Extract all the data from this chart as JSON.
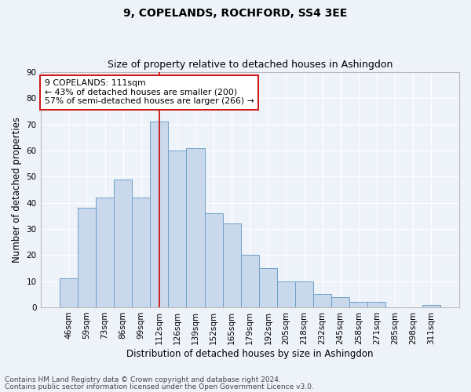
{
  "title": "9, COPELANDS, ROCHFORD, SS4 3EE",
  "subtitle": "Size of property relative to detached houses in Ashingdon",
  "xlabel": "Distribution of detached houses by size in Ashingdon",
  "ylabel": "Number of detached properties",
  "categories": [
    "46sqm",
    "59sqm",
    "73sqm",
    "86sqm",
    "99sqm",
    "112sqm",
    "126sqm",
    "139sqm",
    "152sqm",
    "165sqm",
    "179sqm",
    "192sqm",
    "205sqm",
    "218sqm",
    "232sqm",
    "245sqm",
    "258sqm",
    "271sqm",
    "285sqm",
    "298sqm",
    "311sqm"
  ],
  "values": [
    11,
    38,
    42,
    49,
    42,
    71,
    60,
    61,
    36,
    32,
    20,
    15,
    10,
    10,
    5,
    4,
    2,
    2,
    0,
    0,
    1
  ],
  "bar_color": "#c9d9eb",
  "bar_edge_color": "#6fa0c8",
  "vline_x": 5.0,
  "vline_color": "#cc0000",
  "ylim": [
    0,
    90
  ],
  "yticks": [
    0,
    10,
    20,
    30,
    40,
    50,
    60,
    70,
    80,
    90
  ],
  "annotation_title": "9 COPELANDS: 111sqm",
  "annotation_line1": "← 43% of detached houses are smaller (200)",
  "annotation_line2": "57% of semi-detached houses are larger (266) →",
  "annotation_box_color": "#ffffff",
  "annotation_box_edge": "#cc0000",
  "footer1": "Contains HM Land Registry data © Crown copyright and database right 2024.",
  "footer2": "Contains public sector information licensed under the Open Government Licence v3.0.",
  "background_color": "#eef2f9",
  "grid_color": "#ffffff",
  "title_fontsize": 10,
  "subtitle_fontsize": 9,
  "axis_label_fontsize": 8.5,
  "tick_fontsize": 7.5,
  "footer_fontsize": 6.5,
  "annotation_fontsize": 7.8
}
